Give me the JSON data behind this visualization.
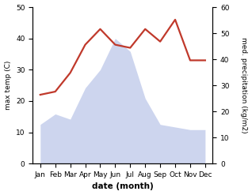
{
  "months": [
    "Jan",
    "Feb",
    "Mar",
    "Apr",
    "May",
    "Jun",
    "Jul",
    "Aug",
    "Sep",
    "Oct",
    "Nov",
    "Dec"
  ],
  "temperature": [
    22,
    23,
    29,
    38,
    43,
    38,
    37,
    43,
    39,
    46,
    33,
    33
  ],
  "precipitation": [
    15,
    19,
    17,
    29,
    36,
    48,
    43,
    25,
    15,
    14,
    13,
    13
  ],
  "temp_color": "#c0392b",
  "precip_fill_color": "#b8c4e8",
  "temp_ylim": [
    0,
    50
  ],
  "precip_ylim": [
    0,
    60
  ],
  "xlabel": "date (month)",
  "ylabel_left": "max temp (C)",
  "ylabel_right": "med. precipitation (kg/m2)",
  "temp_linewidth": 1.6,
  "xlabel_fontsize": 7.5,
  "tick_fontsize": 6.5,
  "label_fontsize": 6.5
}
